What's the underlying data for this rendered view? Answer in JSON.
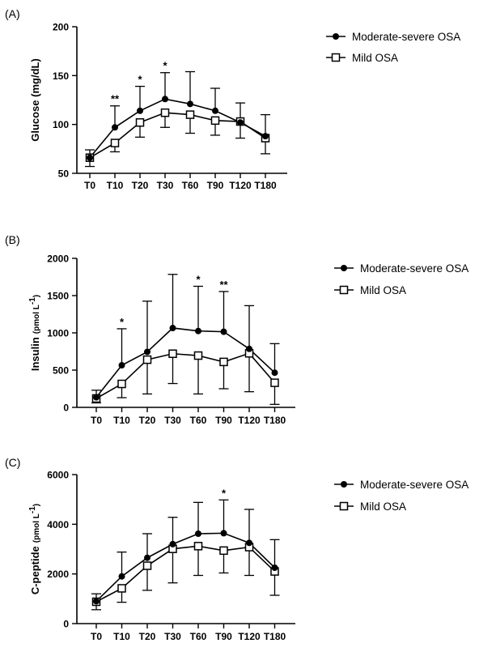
{
  "chart_data": [
    {
      "type": "line",
      "panel_label": "(A)",
      "ylabel": "Glucose (mg/dL)",
      "ylim": [
        50,
        200
      ],
      "yticks": [
        "50",
        "100",
        "150",
        "200"
      ],
      "categories": [
        "T0",
        "T10",
        "T20",
        "T30",
        "T60",
        "T90",
        "T120",
        "T180"
      ],
      "legend_position": "top-right",
      "series": [
        {
          "name": "Moderate-severe OSA",
          "marker": "filled-circle",
          "values": [
            66,
            97,
            114,
            126,
            121,
            114,
            102,
            88
          ],
          "error_upper": [
            74,
            119,
            139,
            153,
            154,
            137,
            122,
            110
          ]
        },
        {
          "name": "Mild OSA",
          "marker": "open-square",
          "values": [
            66,
            81,
            102,
            112,
            110,
            104,
            103,
            86
          ],
          "error_lower": [
            57,
            72,
            87,
            97,
            91,
            89,
            86,
            70
          ]
        }
      ],
      "annotations": [
        {
          "category": "T10",
          "text": "**"
        },
        {
          "category": "T20",
          "text": "*"
        },
        {
          "category": "T30",
          "text": "*"
        }
      ]
    },
    {
      "type": "line",
      "panel_label": "(B)",
      "ylabel": "Insulin",
      "ylabel_unit": "(pmol L",
      "ylabel_unit_sup": "-1",
      "ylabel_unit_close": ")",
      "ylim": [
        0,
        2000
      ],
      "yticks": [
        "0",
        "500",
        "1000",
        "1500",
        "2000"
      ],
      "categories": [
        "T0",
        "T10",
        "T20",
        "T30",
        "T60",
        "T90",
        "T120",
        "T180"
      ],
      "legend_position": "right",
      "series": [
        {
          "name": "Moderate-severe OSA",
          "marker": "filled-circle",
          "values": [
            135,
            565,
            745,
            1065,
            1025,
            1015,
            785,
            465
          ],
          "error_upper": [
            230,
            1055,
            1425,
            1785,
            1625,
            1555,
            1365,
            855
          ]
        },
        {
          "name": "Mild OSA",
          "marker": "open-square",
          "values": [
            120,
            315,
            640,
            720,
            695,
            610,
            725,
            330
          ],
          "error_lower": [
            60,
            130,
            180,
            320,
            180,
            250,
            210,
            40
          ]
        }
      ],
      "annotations": [
        {
          "category": "T10",
          "text": "*"
        },
        {
          "category": "T60",
          "text": "*"
        },
        {
          "category": "T90",
          "text": "**"
        }
      ]
    },
    {
      "type": "line",
      "panel_label": "(C)",
      "ylabel": "C-peptide",
      "ylabel_unit": "(pmol L",
      "ylabel_unit_sup": "-1",
      "ylabel_unit_close": ")",
      "ylim": [
        0,
        6000
      ],
      "yticks": [
        "0",
        "2000",
        "4000",
        "6000"
      ],
      "categories": [
        "T0",
        "T10",
        "T20",
        "T30",
        "T60",
        "T90",
        "T120",
        "T180"
      ],
      "legend_position": "right",
      "series": [
        {
          "name": "Moderate-severe OSA",
          "marker": "filled-circle",
          "values": [
            900,
            1900,
            2650,
            3200,
            3620,
            3640,
            3250,
            2250
          ],
          "error_upper": [
            1200,
            2880,
            3620,
            4280,
            4880,
            4980,
            4600,
            3380
          ]
        },
        {
          "name": "Mild OSA",
          "marker": "open-square",
          "values": [
            880,
            1420,
            2330,
            3010,
            3120,
            2940,
            3080,
            2100
          ],
          "error_lower": [
            560,
            860,
            1340,
            1640,
            1940,
            2040,
            1940,
            1140
          ]
        }
      ],
      "annotations": [
        {
          "category": "T90",
          "text": "*"
        }
      ]
    }
  ]
}
